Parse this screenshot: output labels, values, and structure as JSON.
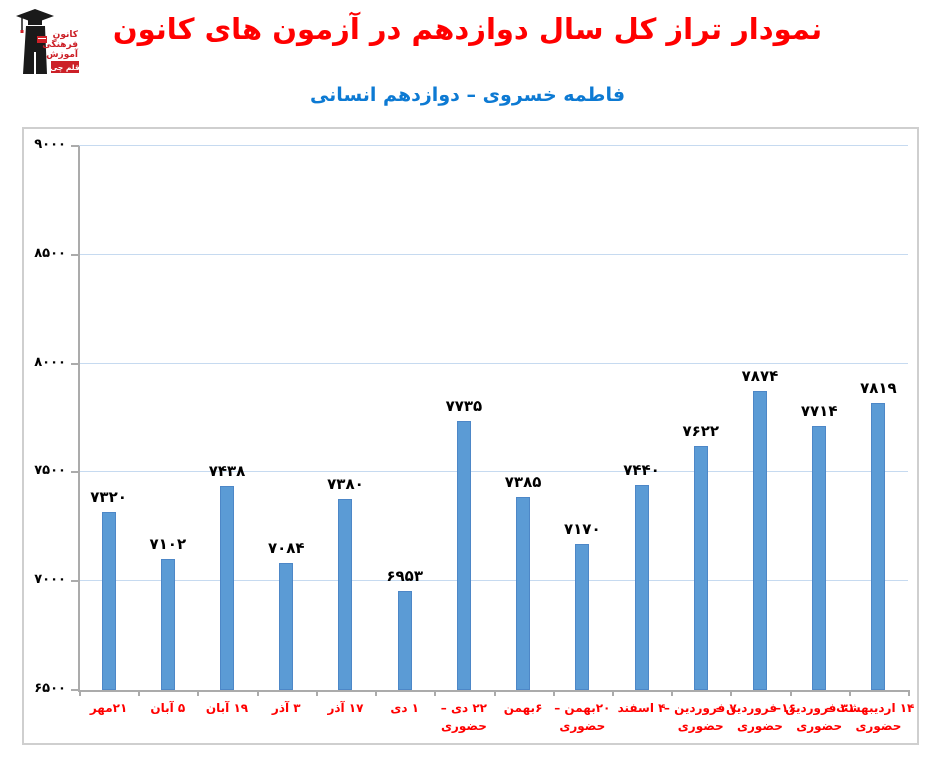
{
  "header": {
    "title": "نمودار تراز کل سال دوازدهم در آزمون های کانون",
    "subtitle": "فاطمه خسروی – دوازدهم انسانی",
    "title_color": "#ff0000",
    "subtitle_color": "#0d7ad3",
    "logo": {
      "text_lines": [
        "کانون",
        "فرهنگی",
        "آموزش"
      ],
      "badge": "قلم چی",
      "red": "#cc2027",
      "black": "#1a1a1a"
    }
  },
  "chart_data": {
    "type": "bar",
    "title": "نمودار تراز کل سال دوازدهم در آزمون های کانون",
    "subtitle": "فاطمه خسروی – دوازدهم انسانی",
    "categories": [
      "۲۱مهر",
      "۵ آبان",
      "۱۹ آبان",
      "۳ آذر",
      "۱۷ آذر",
      "۱ دی",
      "۲۲ دی – حضوری",
      "۶بهمن",
      "۲۰بهمن – حضوری",
      "۴ اسفند",
      "۷ فروردین – حضوری",
      "۱۶ فروردین – حضوری",
      "۳۱ فروردین – حضوری",
      "۱۴ اردیبهشت – حضوری"
    ],
    "category_lines": [
      [
        "۲۱مهر"
      ],
      [
        "۵ آبان"
      ],
      [
        "۱۹ آبان"
      ],
      [
        "۳ آذر"
      ],
      [
        "۱۷ آذر"
      ],
      [
        "۱ دی"
      ],
      [
        "۲۲ دی –",
        "حضوری"
      ],
      [
        "۶بهمن"
      ],
      [
        "۲۰بهمن –",
        "حضوری"
      ],
      [
        "۴ اسفند"
      ],
      [
        "۷ فروردین –",
        "حضوری"
      ],
      [
        "۱۶ فروردین –",
        "حضوری"
      ],
      [
        "۳۱ فروردین –",
        "حضوری"
      ],
      [
        "۱۴ اردیبهشت –",
        "حضوری"
      ]
    ],
    "values": [
      7320,
      7102,
      7438,
      7084,
      7380,
      6953,
      7735,
      7385,
      7170,
      7440,
      7622,
      7874,
      7714,
      7819
    ],
    "value_labels": [
      "۷۳۲۰",
      "۷۱۰۲",
      "۷۴۳۸",
      "۷۰۸۴",
      "۷۳۸۰",
      "۶۹۵۳",
      "۷۷۳۵",
      "۷۳۸۵",
      "۷۱۷۰",
      "۷۴۴۰",
      "۷۶۲۲",
      "۷۸۷۴",
      "۷۷۱۴",
      "۷۸۱۹"
    ],
    "ylim": [
      6500,
      9000
    ],
    "yticks": [
      6500,
      7000,
      7500,
      8000,
      8500,
      9000
    ],
    "ytick_labels": [
      "۶۵۰۰",
      "۷۰۰۰",
      "۷۵۰۰",
      "۸۰۰۰",
      "۸۵۰۰",
      "۹۰۰۰"
    ],
    "grid": true,
    "legend": "none",
    "colors": {
      "bar_fill": "#5b9bd5",
      "bar_border": "#4d87c7",
      "gridline": "#c6daf0",
      "axis": "#ababab",
      "value_label": "#000000",
      "category_label": "#ff0000",
      "ytick_label": "#000000"
    }
  }
}
